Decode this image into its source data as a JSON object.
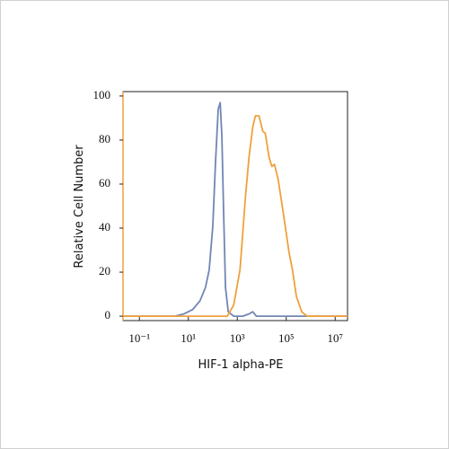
{
  "chart_data": {
    "type": "line",
    "x_label": "HIF-1 alpha-PE",
    "y_label": "Relative Cell Number",
    "xscale": "log",
    "xlim": [
      0.0214,
      32000000
    ],
    "ylim": [
      -2,
      102
    ],
    "xticks": [
      {
        "value": 0.1,
        "label": "10⁻¹"
      },
      {
        "value": 10,
        "label": "10¹"
      },
      {
        "value": 1000,
        "label": "10³"
      },
      {
        "value": 100000,
        "label": "10⁵"
      },
      {
        "value": 10000000,
        "label": "10⁷"
      }
    ],
    "yticks": [
      0,
      20,
      40,
      60,
      80,
      100
    ],
    "series": [
      {
        "color": "#7186b4",
        "x": [
          0.0214,
          2.8,
          6.5,
          15,
          30,
          50,
          71,
          100,
          129,
          166,
          200,
          234,
          278,
          330,
          427,
          710,
          1660,
          3000,
          4300,
          6000,
          14000,
          32000000
        ],
        "values": [
          0,
          0,
          1,
          3,
          7,
          13,
          21,
          41,
          70,
          94,
          97,
          82,
          46,
          13,
          2,
          0,
          0,
          1,
          2,
          0,
          0,
          0
        ]
      },
      {
        "color": "#f0a03c",
        "x": [
          0.0214,
          390,
          710,
          1290,
          2150,
          3000,
          4300,
          5500,
          7700,
          11000,
          14000,
          20000,
          26000,
          33000,
          47000,
          78000,
          130000,
          180000,
          260000,
          430000,
          710000,
          32000000
        ],
        "values": [
          0,
          0,
          5,
          21,
          54,
          72,
          86,
          91,
          91,
          84,
          83,
          72,
          68,
          69,
          62,
          46,
          29,
          21,
          9,
          2,
          0,
          0
        ]
      }
    ]
  }
}
